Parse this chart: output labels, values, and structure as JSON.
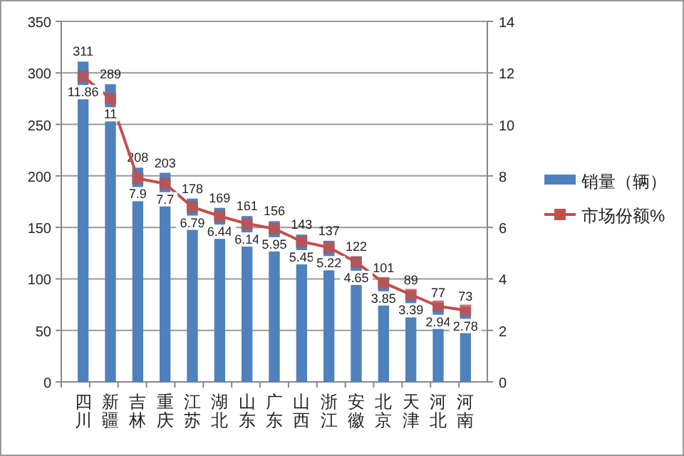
{
  "chart_data": {
    "type": "bar",
    "categories": [
      "四川",
      "新疆",
      "吉林",
      "重庆",
      "江苏",
      "湖北",
      "山东",
      "广东",
      "山西",
      "浙江",
      "安徽",
      "北京",
      "天津",
      "河北",
      "河南"
    ],
    "series": [
      {
        "name": "销量（辆）",
        "color": "#4f81bd",
        "values": [
          311,
          289,
          208,
          203,
          178,
          169,
          161,
          156,
          143,
          137,
          122,
          101,
          89,
          77,
          73
        ]
      },
      {
        "name": "市场份额%",
        "type": "line",
        "axis": "y2",
        "color": "#c0504d",
        "values": [
          11.86,
          11,
          7.9,
          7.7,
          6.79,
          6.44,
          6.14,
          5.95,
          5.45,
          5.22,
          4.65,
          3.85,
          3.39,
          2.94,
          2.78
        ]
      }
    ],
    "ylim": [
      0,
      350
    ],
    "yticks": [
      0,
      50,
      100,
      150,
      200,
      250,
      300,
      350
    ],
    "y2lim": [
      0,
      14
    ],
    "y2ticks": [
      0,
      2,
      4,
      6,
      8,
      10,
      12,
      14
    ],
    "grid": "y",
    "legend": "right",
    "marker": "square",
    "data_labels": true
  }
}
